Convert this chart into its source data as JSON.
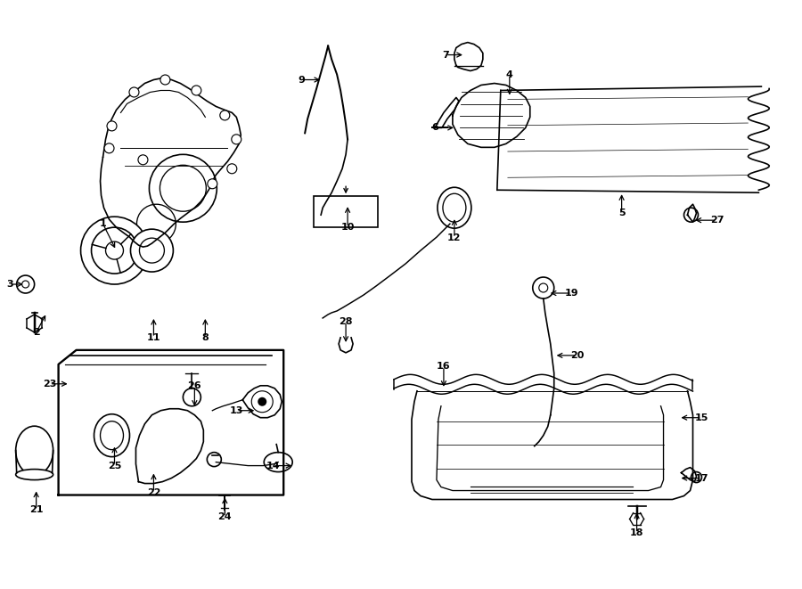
{
  "bg_color": "#ffffff",
  "lc": "#000000",
  "lw": 1.2,
  "xlim": [
    0,
    9
  ],
  "ylim": [
    0,
    6.61
  ],
  "callouts": [
    [
      "1",
      [
        1.3,
        3.8
      ],
      [
        1.15,
        4.1
      ]
    ],
    [
      "2",
      [
        0.52,
        3.1
      ],
      [
        0.4,
        2.88
      ]
    ],
    [
      "3",
      [
        0.28,
        3.42
      ],
      [
        0.1,
        3.42
      ]
    ],
    [
      "4",
      [
        5.72,
        5.52
      ],
      [
        5.72,
        5.78
      ]
    ],
    [
      "5",
      [
        6.98,
        4.46
      ],
      [
        6.98,
        4.22
      ]
    ],
    [
      "6",
      [
        5.12,
        5.18
      ],
      [
        4.88,
        5.18
      ]
    ],
    [
      "7",
      [
        5.22,
        6.0
      ],
      [
        5.0,
        6.0
      ]
    ],
    [
      "8",
      [
        2.3,
        3.06
      ],
      [
        2.3,
        2.82
      ]
    ],
    [
      "9",
      [
        3.62,
        5.72
      ],
      [
        3.38,
        5.72
      ]
    ],
    [
      "10",
      [
        3.9,
        4.32
      ],
      [
        3.9,
        4.06
      ]
    ],
    [
      "11",
      [
        1.72,
        3.06
      ],
      [
        1.72,
        2.82
      ]
    ],
    [
      "12",
      [
        5.1,
        4.18
      ],
      [
        5.1,
        3.94
      ]
    ],
    [
      "13",
      [
        2.88,
        2.0
      ],
      [
        2.65,
        2.0
      ]
    ],
    [
      "14",
      [
        3.3,
        1.38
      ],
      [
        3.06,
        1.38
      ]
    ],
    [
      "15",
      [
        7.62,
        1.92
      ],
      [
        7.88,
        1.92
      ]
    ],
    [
      "16",
      [
        4.98,
        2.24
      ],
      [
        4.98,
        2.5
      ]
    ],
    [
      "17",
      [
        7.62,
        1.24
      ],
      [
        7.88,
        1.24
      ]
    ],
    [
      "18",
      [
        7.15,
        0.88
      ],
      [
        7.15,
        0.62
      ]
    ],
    [
      "19",
      [
        6.15,
        3.32
      ],
      [
        6.42,
        3.32
      ]
    ],
    [
      "20",
      [
        6.22,
        2.62
      ],
      [
        6.48,
        2.62
      ]
    ],
    [
      "21",
      [
        0.4,
        1.12
      ],
      [
        0.4,
        0.88
      ]
    ],
    [
      "22",
      [
        1.72,
        1.32
      ],
      [
        1.72,
        1.08
      ]
    ],
    [
      "23",
      [
        0.78,
        2.3
      ],
      [
        0.55,
        2.3
      ]
    ],
    [
      "24",
      [
        2.52,
        1.05
      ],
      [
        2.52,
        0.8
      ]
    ],
    [
      "25",
      [
        1.28,
        1.62
      ],
      [
        1.28,
        1.38
      ]
    ],
    [
      "26",
      [
        2.18,
        2.02
      ],
      [
        2.18,
        2.28
      ]
    ],
    [
      "27",
      [
        7.78,
        4.14
      ],
      [
        8.05,
        4.14
      ]
    ],
    [
      "28",
      [
        3.88,
        2.74
      ],
      [
        3.88,
        3.0
      ]
    ]
  ]
}
